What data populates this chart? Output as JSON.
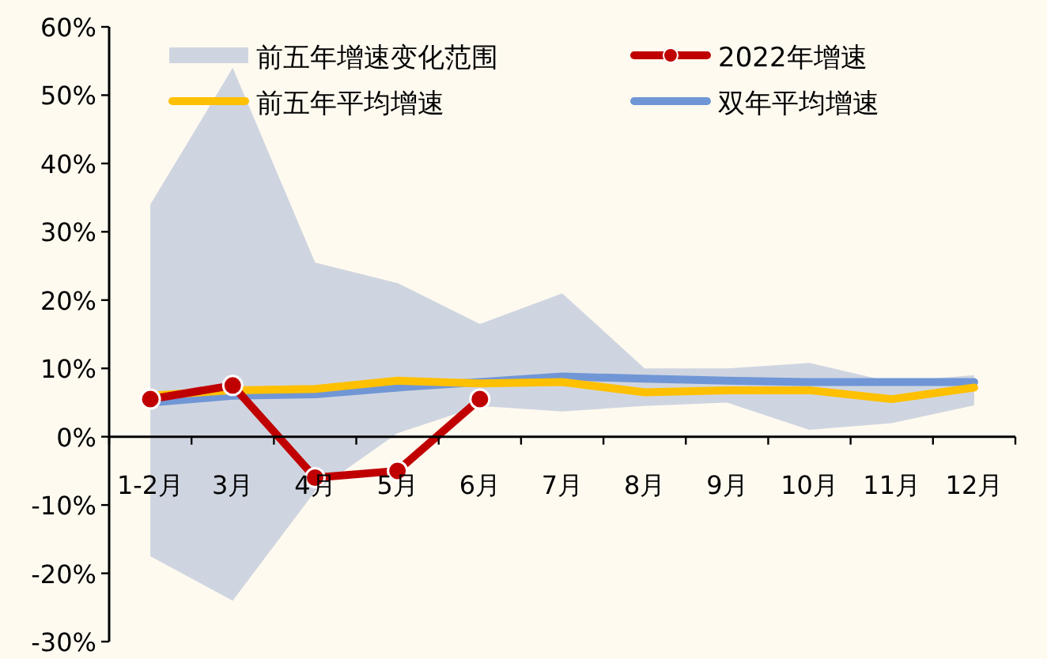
{
  "chart_data": {
    "type": "line",
    "categories": [
      "1-2月",
      "3月",
      "4月",
      "5月",
      "6月",
      "7月",
      "8月",
      "9月",
      "10月",
      "11月",
      "12月"
    ],
    "ylim": [
      -30,
      60
    ],
    "yticks": [
      {
        "value": -30,
        "label": "-30%"
      },
      {
        "value": -20,
        "label": "-20%"
      },
      {
        "value": -10,
        "label": "-10%"
      },
      {
        "value": 0,
        "label": "0%"
      },
      {
        "value": 10,
        "label": "10%"
      },
      {
        "value": 20,
        "label": "20%"
      },
      {
        "value": 30,
        "label": "30%"
      },
      {
        "value": 40,
        "label": "40%"
      },
      {
        "value": 50,
        "label": "50%"
      },
      {
        "value": 60,
        "label": "60%"
      }
    ],
    "grid": false,
    "legend": "top",
    "series": [
      {
        "name": "前五年增速变化范围",
        "type": "area",
        "color": "#cfd5e0",
        "values": [
          null,
          null,
          null,
          null,
          null,
          null,
          null,
          null,
          null,
          null,
          null
        ],
        "upper": [
          34,
          54,
          25.5,
          22.5,
          16.5,
          21,
          10,
          10,
          10.8,
          8,
          9
        ],
        "lower": [
          -17.5,
          -24,
          -8,
          0.5,
          4.5,
          3.7,
          4.5,
          5,
          1,
          2,
          4.6
        ]
      },
      {
        "name": "2022年增速",
        "type": "line",
        "marker": "circle",
        "color": "#c00000",
        "values": [
          5.5,
          7.5,
          -6,
          -5,
          5.5,
          null,
          null,
          null,
          null,
          null,
          null
        ]
      },
      {
        "name": "前五年平均增速",
        "type": "line",
        "color": "#ffc000",
        "values": [
          6,
          6.8,
          7,
          8.2,
          7.8,
          8,
          6.5,
          6.8,
          6.8,
          5.5,
          7.2
        ]
      },
      {
        "name": "双年平均增速",
        "type": "line",
        "color": "#7096d6",
        "values": [
          5,
          6,
          6.2,
          7.2,
          8,
          8.8,
          8.5,
          8.2,
          8,
          8,
          8
        ]
      }
    ]
  }
}
